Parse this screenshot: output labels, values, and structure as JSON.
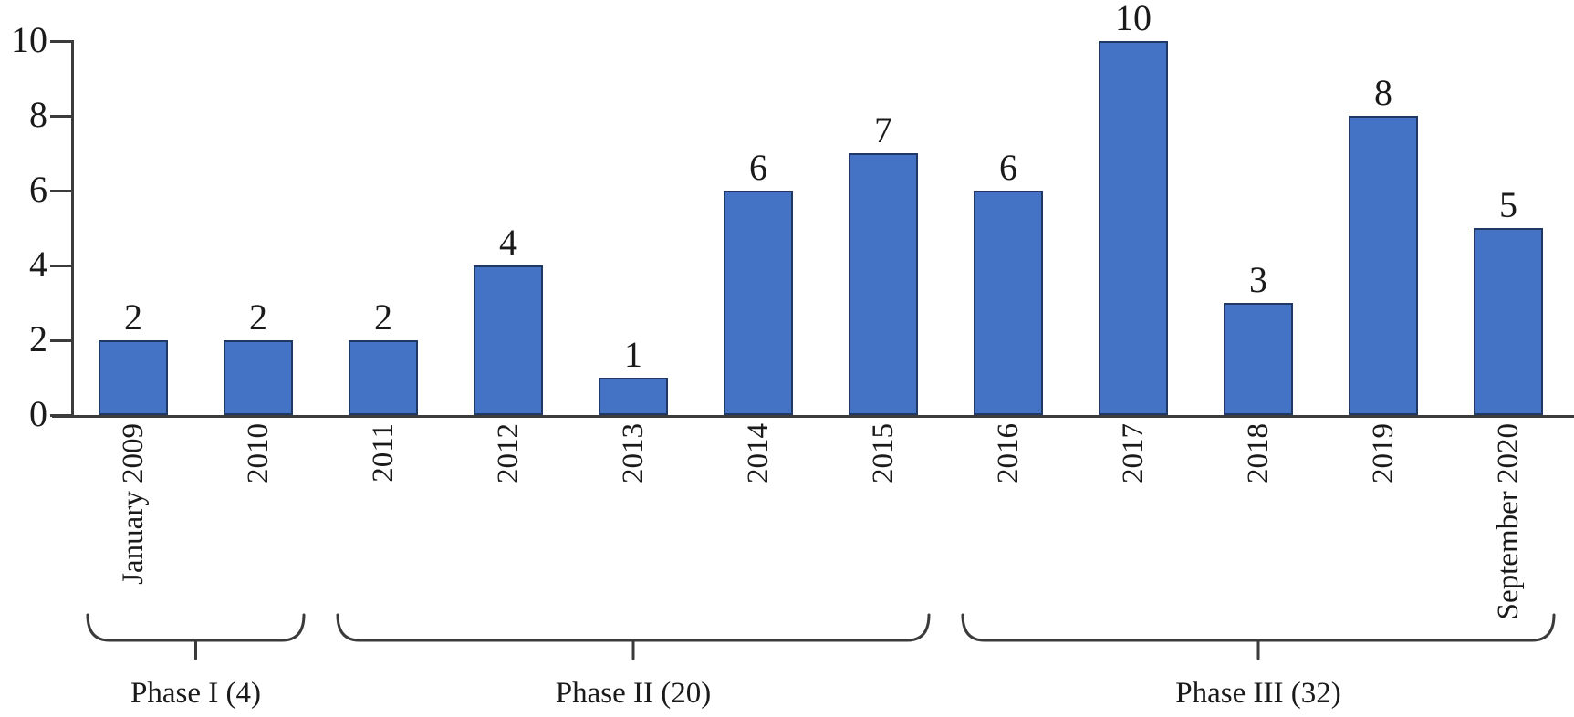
{
  "chart_data": {
    "type": "bar",
    "title": "",
    "categories": [
      "January 2009",
      "2010",
      "2011",
      "2012",
      "2013",
      "2014",
      "2015",
      "2016",
      "2017",
      "2018",
      "2019",
      "September 2020"
    ],
    "values": [
      2,
      2,
      2,
      4,
      1,
      6,
      7,
      6,
      10,
      3,
      8,
      5
    ],
    "data_labels": [
      "2",
      "2",
      "2",
      "4",
      "1",
      "6",
      "7",
      "6",
      "10",
      "3",
      "8",
      "5"
    ],
    "ytick_labels": [
      "0",
      "2",
      "4",
      "6",
      "8",
      "10"
    ],
    "ytick_values": [
      0,
      2,
      4,
      6,
      8,
      10
    ],
    "ylim": [
      0,
      10
    ],
    "xlabel": "",
    "ylabel": "",
    "grid": false,
    "legend_position": "none",
    "bar_color": "#4472C4",
    "bar_border_color": "#1F3864",
    "axis_color": "#3b3b3b",
    "text_color": "#1a1a1a",
    "groups": [
      {
        "label": "Phase I (4)",
        "start_index": 0,
        "end_index": 1
      },
      {
        "label": "Phase II (20)",
        "start_index": 2,
        "end_index": 6
      },
      {
        "label": "Phase III (32)",
        "start_index": 7,
        "end_index": 11
      }
    ]
  }
}
